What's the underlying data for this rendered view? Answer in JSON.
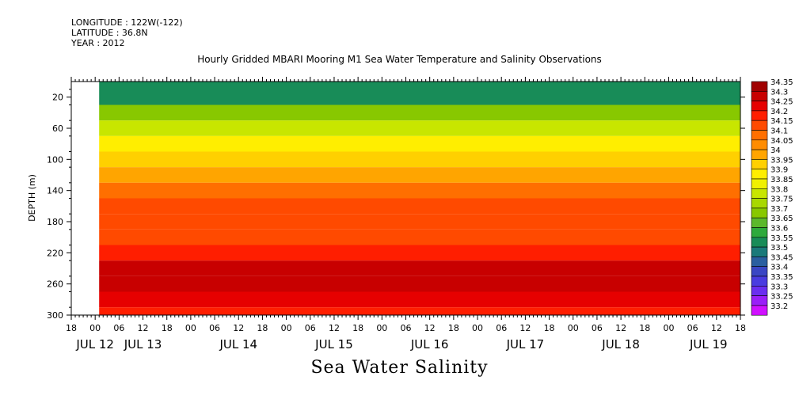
{
  "header": {
    "longitude": "LONGITUDE : 122W(-122)",
    "latitude": "LATITUDE : 36.8N",
    "year": "YEAR : 2012",
    "title": "Hourly Gridded MBARI Mooring M1 Sea Water Temperature and Salinity Observations"
  },
  "chart_data": {
    "type": "heatmap",
    "title": "Hourly Gridded MBARI Mooring M1 Sea Water Temperature and Salinity Observations",
    "xlabel": "Sea Water Salinity",
    "ylabel": "DEPTH (m)",
    "y_reversed": true,
    "ylim": [
      300,
      0
    ],
    "y_ticks": [
      20,
      60,
      100,
      140,
      180,
      220,
      260,
      300
    ],
    "x_range_hours": [
      -6,
      162
    ],
    "x_origin": "JUL 12 00",
    "x_hour_ticks": [
      "18",
      "00",
      "06",
      "12",
      "18",
      "00",
      "06",
      "12",
      "18",
      "00",
      "06",
      "12",
      "18",
      "00",
      "06",
      "12",
      "18",
      "00",
      "06",
      "12",
      "18",
      "00",
      "06",
      "12",
      "18",
      "00",
      "06",
      "12",
      "18"
    ],
    "x_day_labels": [
      {
        "label": "JUL 12",
        "hour": 0
      },
      {
        "label": "JUL 13",
        "hour": 12
      },
      {
        "label": "JUL 14",
        "hour": 36
      },
      {
        "label": "JUL 15",
        "hour": 60
      },
      {
        "label": "JUL 16",
        "hour": 84
      },
      {
        "label": "JUL 17",
        "hour": 108
      },
      {
        "label": "JUL 18",
        "hour": 132
      },
      {
        "label": "JUL 19",
        "hour": 154
      }
    ],
    "data_start_hour": 1,
    "colorbar_levels": [
      34.35,
      34.3,
      34.25,
      34.2,
      34.15,
      34.1,
      34.05,
      34,
      33.95,
      33.9,
      33.85,
      33.8,
      33.75,
      33.7,
      33.65,
      33.6,
      33.55,
      33.5,
      33.45,
      33.4,
      33.35,
      33.3,
      33.25,
      33.2
    ],
    "colorbar_colors": [
      "#a00000",
      "#c80000",
      "#e60000",
      "#ff1e00",
      "#ff4a00",
      "#ff6f00",
      "#ff8c00",
      "#ffa500",
      "#ffd000",
      "#ffee00",
      "#f0f000",
      "#c8e600",
      "#a8d800",
      "#88c800",
      "#5cb82c",
      "#2eaa3c",
      "#188c58",
      "#1a7a7a",
      "#2a5fa0",
      "#3a46c4",
      "#4a3ce0",
      "#6a2ef0",
      "#9a1ef8",
      "#d010ff"
    ],
    "salinity_profile": [
      {
        "depth": 20,
        "value": 33.57
      },
      {
        "depth": 40,
        "value": 33.72
      },
      {
        "depth": 60,
        "value": 33.82
      },
      {
        "depth": 80,
        "value": 33.9
      },
      {
        "depth": 100,
        "value": 33.95
      },
      {
        "depth": 120,
        "value": 34.03
      },
      {
        "depth": 140,
        "value": 34.1
      },
      {
        "depth": 160,
        "value": 34.16
      },
      {
        "depth": 180,
        "value": 34.18
      },
      {
        "depth": 200,
        "value": 34.19
      },
      {
        "depth": 220,
        "value": 34.24
      },
      {
        "depth": 240,
        "value": 34.3
      },
      {
        "depth": 260,
        "value": 34.31
      },
      {
        "depth": 280,
        "value": 34.26
      },
      {
        "depth": 300,
        "value": 34.2
      }
    ]
  }
}
